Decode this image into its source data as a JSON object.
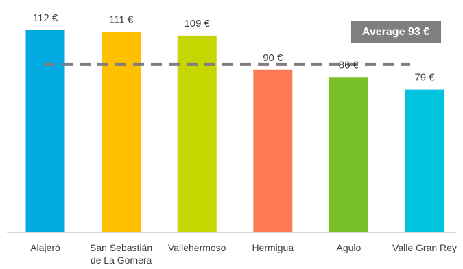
{
  "chart_data": {
    "type": "bar",
    "categories": [
      "Alajeró",
      "San Sebastián de La Gomera",
      "Vallehermoso",
      "Hermigua",
      "Agulo",
      "Valle Gran Rey"
    ],
    "category_lines": [
      [
        "Alajeró"
      ],
      [
        "San Sebastián",
        "de La Gomera"
      ],
      [
        "Vallehermoso"
      ],
      [
        "Hermigua"
      ],
      [
        "Agulo"
      ],
      [
        "Valle Gran Rey"
      ]
    ],
    "values": [
      112,
      111,
      109,
      90,
      86,
      79
    ],
    "value_labels": [
      "112 €",
      "111 €",
      "109 €",
      "90 €",
      "86 €",
      "79 €"
    ],
    "colors": [
      "#00a9e0",
      "#ffc000",
      "#c5d600",
      "#ff7955",
      "#7ac02b",
      "#00c4df"
    ],
    "average": {
      "value": 93,
      "label": "Average 93 €",
      "line_color": "#7f7f7f",
      "style": "dashed"
    },
    "ylim": [
      0,
      112
    ],
    "title": "",
    "xlabel": "",
    "ylabel": "",
    "grid": false,
    "legend": "none"
  }
}
